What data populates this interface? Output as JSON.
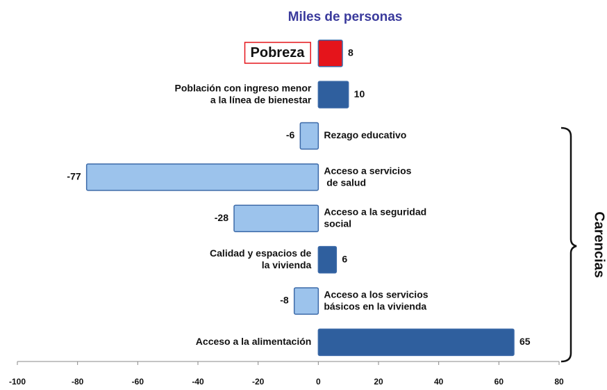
{
  "chart_data": {
    "type": "hbar",
    "title": "Miles de personas",
    "categories": [
      "Pobreza",
      "Población con ingreso menor\na la línea de bienestar",
      "Rezago educativo",
      "Acceso a servicios\n de salud",
      "Acceso a  la seguridad\nsocial",
      "Calidad y espacios de\nla vivienda",
      "Acceso a los servicios\nbásicos en la vivienda",
      "Acceso a la alimentación"
    ],
    "values": [
      8,
      10,
      -6,
      -77,
      -28,
      6,
      -8,
      65
    ],
    "colors": [
      "#e5141b",
      "#2f5f9e",
      "#9cc3ec",
      "#9cc3ec",
      "#9cc3ec",
      "#2f5f9e",
      "#9cc3ec",
      "#2f5f9e"
    ],
    "xlim": [
      -100,
      80
    ],
    "xticks": [
      -100,
      -80,
      -60,
      -40,
      -20,
      0,
      20,
      40,
      60,
      80
    ],
    "annotation": "Carencias"
  }
}
